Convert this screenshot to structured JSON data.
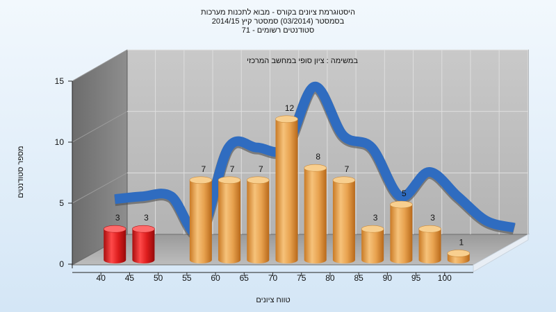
{
  "title_lines": [
    "היסטוגרמת ציונים בקורס - מבוא לתכנות מערכות",
    "בסמסטר   (03/2014)  סמסטר קיץ  2014/15",
    "סטודנטים רשומים - 71"
  ],
  "chart_data": {
    "type": "bar",
    "title": "היסטוגרמת ציונים בקורס - מבוא לתכנות מערכות",
    "inner_label": "במשימה : ציון סופי במחשב המרכזי",
    "xlabel": "טווח ציונים",
    "ylabel": "מספר סטודנטים",
    "categories": [
      "40",
      "45",
      "50",
      "55",
      "60",
      "65",
      "70",
      "75",
      "80",
      "85",
      "90",
      "95",
      "100"
    ],
    "values": [
      3,
      3,
      0,
      7,
      7,
      7,
      12,
      8,
      7,
      3,
      5,
      3,
      1
    ],
    "bar_colors": [
      "#d81c1c",
      "#d81c1c",
      "#e6a24f",
      "#e6a24f",
      "#e6a24f",
      "#e6a24f",
      "#e6a24f",
      "#e6a24f",
      "#e6a24f",
      "#e6a24f",
      "#e6a24f",
      "#e6a24f",
      "#e6a24f"
    ],
    "trend_color": "#2f6cc0",
    "ylim": [
      0,
      15
    ],
    "yticks": [
      0,
      5,
      10,
      15
    ],
    "grid": true,
    "3d": true
  }
}
